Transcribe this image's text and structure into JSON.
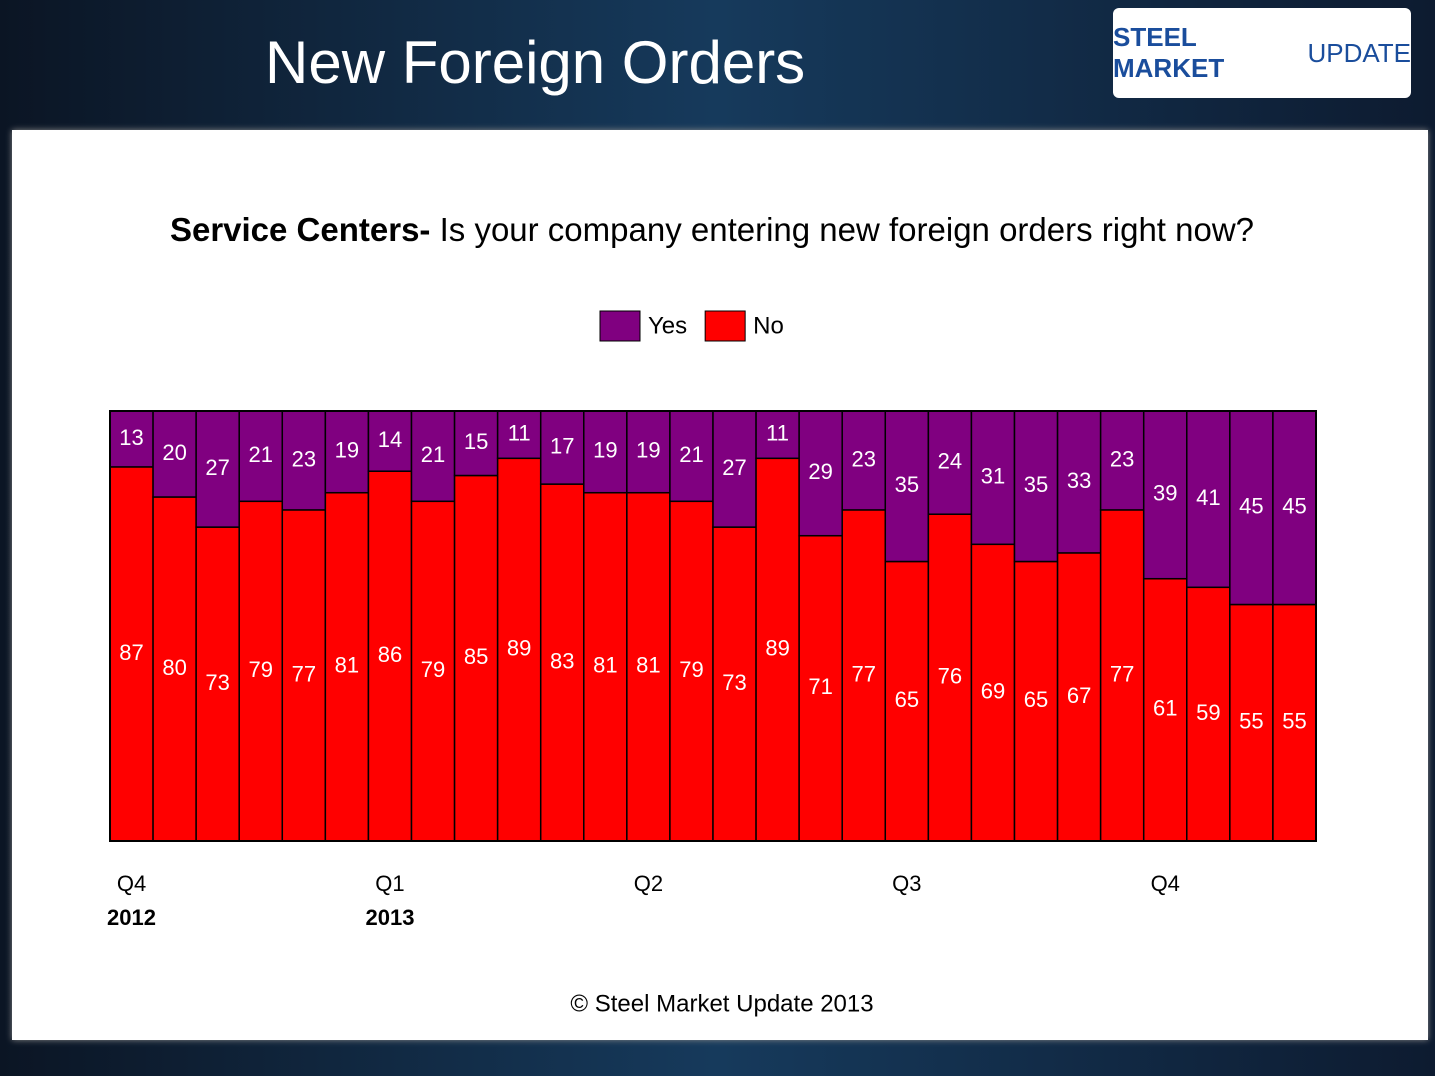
{
  "header": {
    "title": "New Foreign Orders",
    "logo": [
      "STEEL MARKET",
      "UPDATE"
    ]
  },
  "chart_data": {
    "type": "stacked-bar",
    "title_lead": "Service Centers-",
    "title": "Is your company entering new foreign orders right now?",
    "categories": [
      "Q4",
      null,
      null,
      null,
      null,
      null,
      "Q1",
      null,
      null,
      null,
      null,
      null,
      "Q2",
      null,
      null,
      null,
      null,
      null,
      "Q3",
      null,
      null,
      null,
      null,
      null,
      "Q4",
      null,
      null,
      null
    ],
    "years": [
      "2012",
      null,
      null,
      null,
      null,
      null,
      "2013",
      null,
      null,
      null,
      null,
      null,
      null,
      null,
      null,
      null,
      null,
      null,
      null,
      null,
      null,
      null,
      null,
      null,
      null,
      null,
      null,
      null
    ],
    "ylim": [
      0,
      100
    ],
    "legend": "top",
    "series": [
      {
        "name": "No",
        "color": "#ff0000",
        "values": [
          87,
          80,
          73,
          79,
          77,
          81,
          86,
          79,
          85,
          89,
          83,
          81,
          81,
          79,
          73,
          89,
          71,
          77,
          65,
          76,
          69,
          65,
          67,
          77,
          61,
          59,
          55,
          55
        ]
      },
      {
        "name": "Yes",
        "color": "#800080",
        "values": [
          13,
          20,
          27,
          21,
          23,
          19,
          14,
          21,
          15,
          11,
          17,
          19,
          19,
          21,
          27,
          11,
          29,
          23,
          35,
          24,
          31,
          35,
          33,
          23,
          39,
          41,
          45,
          45
        ]
      }
    ]
  },
  "footer": "© Steel Market Update 2013"
}
